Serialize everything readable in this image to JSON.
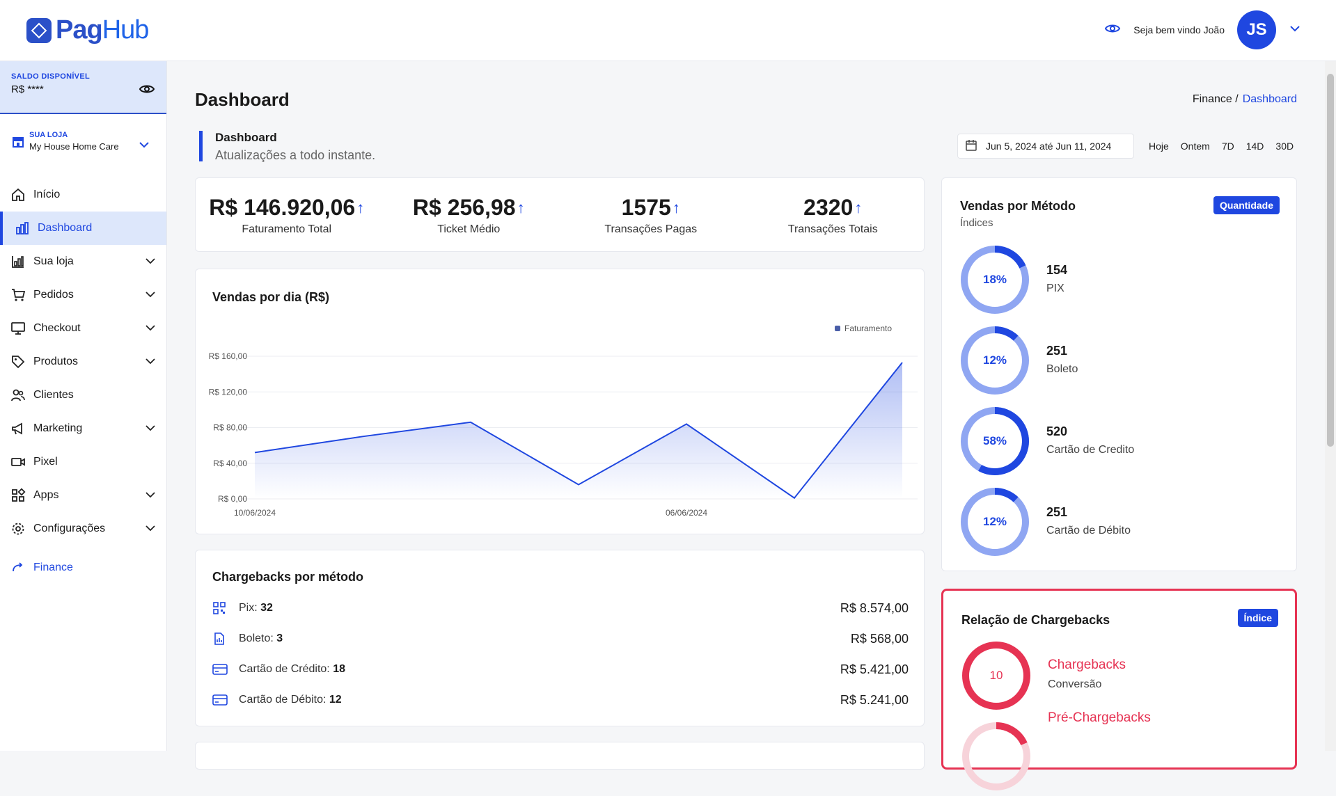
{
  "header": {
    "brand_pag": "Pag",
    "brand_hub": "Hub",
    "welcome": "Seja bem vindo João",
    "avatar_initials": "JS"
  },
  "sidebar": {
    "balance_label": "SALDO DISPONÍVEL",
    "balance_value": "R$ ****",
    "store_label": "SUA LOJA",
    "store_name": "My House Home Care",
    "items": [
      {
        "label": "Início",
        "icon": "home-icon",
        "expandable": false
      },
      {
        "label": "Dashboard",
        "icon": "chart-bars-icon",
        "expandable": false,
        "active": true
      },
      {
        "label": "Sua loja",
        "icon": "store-chart-icon",
        "expandable": true
      },
      {
        "label": "Pedidos",
        "icon": "cart-icon",
        "expandable": true
      },
      {
        "label": "Checkout",
        "icon": "monitor-icon",
        "expandable": true
      },
      {
        "label": "Produtos",
        "icon": "tag-icon",
        "expandable": true
      },
      {
        "label": "Clientes",
        "icon": "users-icon",
        "expandable": false
      },
      {
        "label": "Marketing",
        "icon": "megaphone-icon",
        "expandable": true
      },
      {
        "label": "Pixel",
        "icon": "video-icon",
        "expandable": false
      },
      {
        "label": "Apps",
        "icon": "apps-icon",
        "expandable": true
      },
      {
        "label": "Configurações",
        "icon": "gear-icon",
        "expandable": true
      }
    ],
    "finance_label": "Finance"
  },
  "page": {
    "title": "Dashboard",
    "breadcrumb_root": "Finance /",
    "breadcrumb_current": "Dashboard",
    "sub_title": "Dashboard",
    "sub_desc": "Atualizações a todo instante.",
    "date_range": "Jun 5, 2024 até Jun 11, 2024",
    "ranges": [
      "Hoje",
      "Ontem",
      "7D",
      "14D",
      "30D"
    ]
  },
  "stats": [
    {
      "value": "R$ 146.920,06",
      "label": "Faturamento Total"
    },
    {
      "value": "R$ 256,98",
      "label": "Ticket Médio"
    },
    {
      "value": "1575",
      "label": "Transações Pagas"
    },
    {
      "value": "2320",
      "label": "Transações Totais"
    }
  ],
  "chart_data": {
    "type": "area",
    "title": "Vendas por dia (R$)",
    "legend": "Faturamento",
    "legend_position": "top-right",
    "x": [
      "10/06/2024",
      "",
      "",
      "",
      "06/06/2024",
      "",
      ""
    ],
    "x_tick_labels": [
      "10/06/2024",
      "06/06/2024"
    ],
    "y_ticks": [
      "R$ 0,00",
      "R$ 40,00",
      "R$ 80,00",
      "R$ 120,00",
      "R$ 160,00"
    ],
    "ylim": [
      0,
      160
    ],
    "series": [
      {
        "name": "Faturamento",
        "values": [
          52,
          70,
          86,
          16,
          84,
          1,
          153
        ]
      }
    ],
    "grid": true,
    "color": "#1f47e0"
  },
  "chargebacks": {
    "title": "Chargebacks por método",
    "rows": [
      {
        "icon": "qr-icon",
        "label": "Pix:",
        "count": "32",
        "amount": "R$ 8.574,00"
      },
      {
        "icon": "boleto-file-icon",
        "label": "Boleto:",
        "count": "3",
        "amount": "R$ 568,00"
      },
      {
        "icon": "credit-card-icon",
        "label": "Cartão de Crédito:",
        "count": "18",
        "amount": "R$ 5.421,00"
      },
      {
        "icon": "debit-card-icon",
        "label": "Cartão de Débito:",
        "count": "12",
        "amount": "R$ 5.241,00"
      }
    ]
  },
  "methods": {
    "title": "Vendas por Método",
    "subtitle": "Índices",
    "pill": "Quantidade",
    "items": [
      {
        "pct": "18%",
        "fraction": 0.18,
        "count": "154",
        "name": "PIX"
      },
      {
        "pct": "12%",
        "fraction": 0.12,
        "count": "251",
        "name": "Boleto"
      },
      {
        "pct": "58%",
        "fraction": 0.58,
        "count": "520",
        "name": "Cartão de Credito"
      },
      {
        "pct": "12%",
        "fraction": 0.12,
        "count": "251",
        "name": "Cartão de Débito"
      }
    ]
  },
  "chargeback_relation": {
    "title": "Relação de Chargebacks",
    "pill": "Índice",
    "items": [
      {
        "value": "10",
        "title": "Chargebacks",
        "sub": "Conversão"
      },
      {
        "value": "",
        "title": "Pré-Chargebacks",
        "sub": ""
      }
    ]
  },
  "colors": {
    "accent": "#1f47e0",
    "accent_light": "#8fa6f2",
    "danger": "#e63353",
    "sidebar_active_bg": "#dde7fb"
  }
}
